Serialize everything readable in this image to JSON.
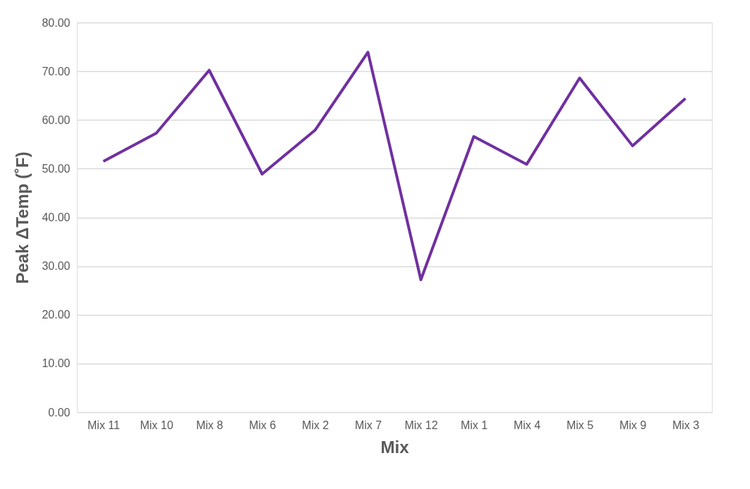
{
  "chart_data": {
    "type": "line",
    "xlabel": "Mix",
    "ylabel": "Peak ΔTemp (˚F)",
    "categories": [
      "Mix 11",
      "Mix 10",
      "Mix 8",
      "Mix 6",
      "Mix 2",
      "Mix 7",
      "Mix 12",
      "Mix 1",
      "Mix 4",
      "Mix 5",
      "Mix 9",
      "Mix 3"
    ],
    "series": [
      {
        "color": "#7030a0",
        "values": [
          51.5,
          57.3,
          70.2,
          48.9,
          57.9,
          73.9,
          27.2,
          56.6,
          50.9,
          68.6,
          54.7,
          64.4
        ]
      }
    ],
    "ylim": [
      0,
      80
    ],
    "yticks": [
      {
        "value": 0,
        "label": "0.00"
      },
      {
        "value": 10,
        "label": "10.00"
      },
      {
        "value": 20,
        "label": "20.00"
      },
      {
        "value": 30,
        "label": "30.00"
      },
      {
        "value": 40,
        "label": "40.00"
      },
      {
        "value": 50,
        "label": "50.00"
      },
      {
        "value": 60,
        "label": "60.00"
      },
      {
        "value": 70,
        "label": "70.00"
      },
      {
        "value": 80,
        "label": "80.00"
      }
    ],
    "grid": "y",
    "legend": false,
    "marker": "none",
    "line_style": "solid"
  }
}
